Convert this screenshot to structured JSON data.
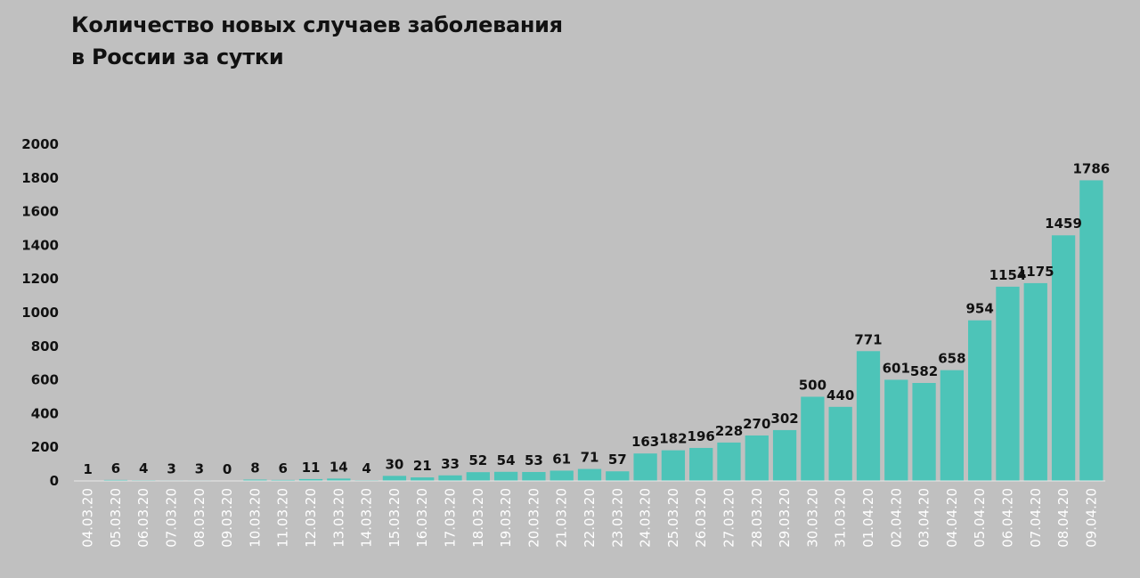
{
  "chart_data": {
    "type": "bar",
    "title_lines": [
      "Количество новых случаев заболевания",
      "в России за сутки"
    ],
    "xlabel": "",
    "ylabel": "",
    "ylim": [
      0,
      2000
    ],
    "yticks": [
      0,
      200,
      400,
      600,
      800,
      1000,
      1200,
      1400,
      1600,
      1800,
      2000
    ],
    "grid": false,
    "bar_color": "#4dc4b8",
    "categories": [
      "04.03.20",
      "05.03.20",
      "06.03.20",
      "07.03.20",
      "08.03.20",
      "09.03.20",
      "10.03.20",
      "11.03.20",
      "12.03.20",
      "13.03.20",
      "14.03.20",
      "15.03.20",
      "16.03.20",
      "17.03.20",
      "18.03.20",
      "19.03.20",
      "20.03.20",
      "21.03.20",
      "22.03.20",
      "23.03.20",
      "24.03.20",
      "25.03.20",
      "26.03.20",
      "27.03.20",
      "28.03.20",
      "29.03.20",
      "30.03.20",
      "31.03.20",
      "01.04.20",
      "02.04.20",
      "03.04.20",
      "04.04.20",
      "05.04.20",
      "06.04.20",
      "07.04.20",
      "08.04.20",
      "09.04.20"
    ],
    "values": [
      1,
      6,
      4,
      3,
      3,
      0,
      8,
      6,
      11,
      14,
      4,
      30,
      21,
      33,
      52,
      54,
      53,
      61,
      71,
      57,
      163,
      182,
      196,
      228,
      270,
      302,
      500,
      440,
      771,
      601,
      582,
      658,
      954,
      1154,
      1175,
      1459,
      1786
    ]
  }
}
